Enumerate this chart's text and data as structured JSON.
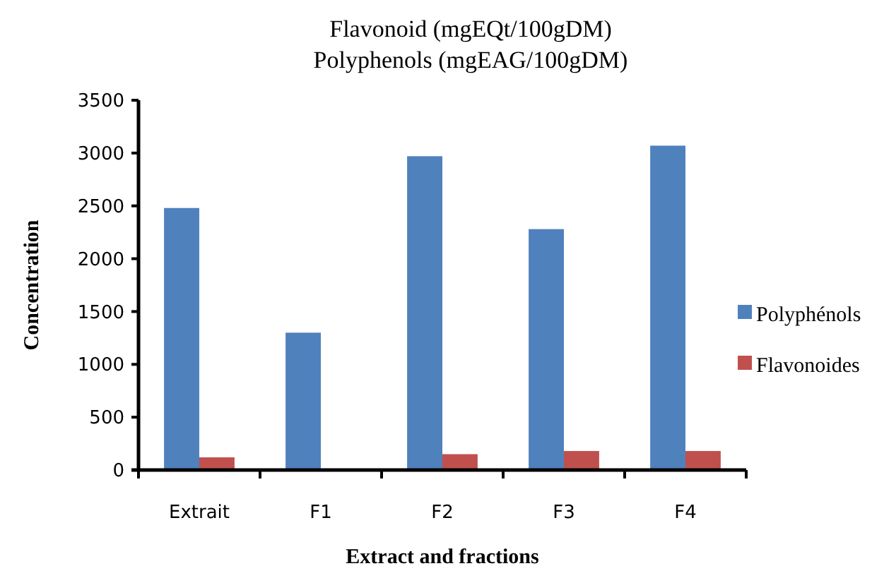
{
  "chart_data": {
    "type": "bar",
    "title": "Flavonoid (mgEQt/100gDM)",
    "subtitle": "Polyphenols (mgEAG/100gDM)",
    "xlabel": "Extract and fractions",
    "ylabel": "Concentration",
    "categories": [
      "Extrait",
      "F1",
      "F2",
      "F3",
      "F4"
    ],
    "series": [
      {
        "name": "Polyphénols",
        "color": "#4f81bd",
        "values": [
          2480,
          1300,
          2970,
          2280,
          3070
        ]
      },
      {
        "name": "Flavonoides",
        "color": "#c0504d",
        "values": [
          120,
          null,
          150,
          180,
          180
        ]
      }
    ],
    "ylim": [
      0,
      3500
    ],
    "yticks": [
      0,
      500,
      1000,
      1500,
      2000,
      2500,
      3000,
      3500
    ],
    "grid": false,
    "legend": "right"
  }
}
